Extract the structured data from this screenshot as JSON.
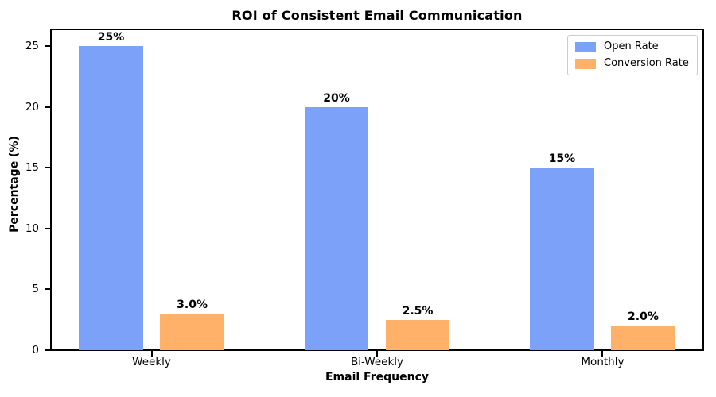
{
  "chart_data": {
    "type": "bar",
    "title": "ROI of Consistent Email Communication",
    "xlabel": "Email Frequency",
    "ylabel": "Percentage (%)",
    "categories": [
      "Weekly",
      "Bi-Weekly",
      "Monthly"
    ],
    "series": [
      {
        "name": "Open Rate",
        "color": "#7CA1F8",
        "values": [
          25,
          20,
          15
        ],
        "value_labels": [
          "25%",
          "20%",
          "15%"
        ]
      },
      {
        "name": "Conversion Rate",
        "color": "#FFB169",
        "values": [
          3,
          2.5,
          2
        ],
        "value_labels": [
          "3.0%",
          "2.5%",
          "2.0%"
        ]
      }
    ],
    "yticks": [
      0,
      5,
      10,
      15,
      20,
      25
    ],
    "ylim": [
      0,
      26.3
    ],
    "xlim": [
      -0.45,
      2.45
    ],
    "bar_width": 0.285,
    "bar_offset": 0.18,
    "grid": false,
    "legend": {
      "position": "upper-right",
      "entries": [
        "Open Rate",
        "Conversion Rate"
      ]
    },
    "colors": {
      "axis": "#000000",
      "text": "#000000",
      "background": "#ffffff",
      "legend_border": "#cccccc"
    }
  }
}
